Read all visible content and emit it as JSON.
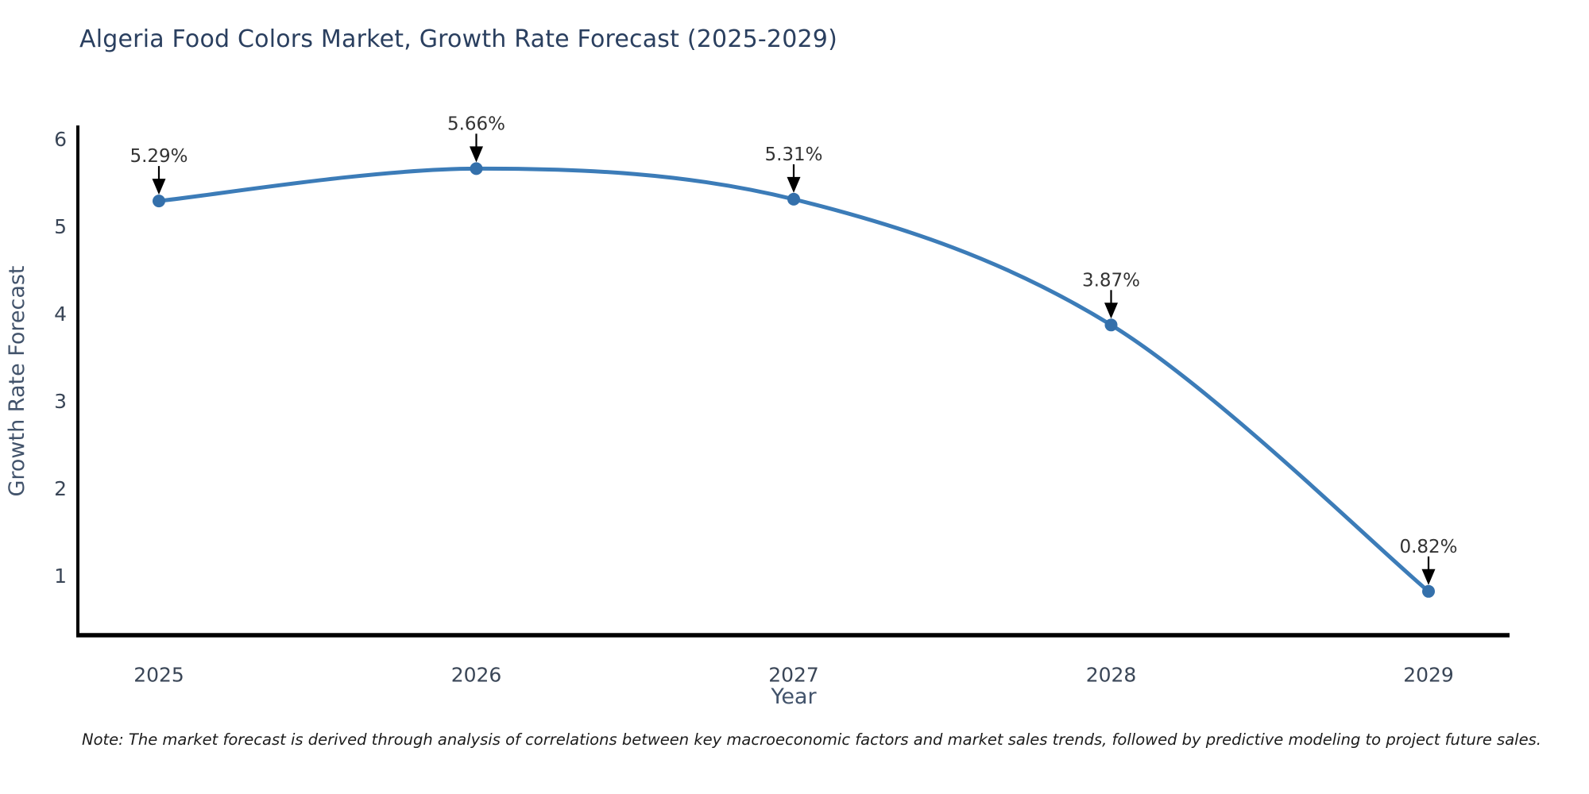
{
  "chart": {
    "title": "Algeria Food Colors Market, Growth Rate Forecast (2025-2029)",
    "note": "Note: The market forecast is derived through analysis of correlations between key macroeconomic factors and market sales trends, followed by predictive modeling to project future sales."
  },
  "chart_data": {
    "type": "line",
    "title": "Algeria Food Colors Market, Growth Rate Forecast (2025-2029)",
    "xlabel": "Year",
    "ylabel": "Growth Rate Forecast",
    "x": [
      2025,
      2026,
      2027,
      2028,
      2029
    ],
    "values": [
      5.29,
      5.66,
      5.31,
      3.87,
      0.82
    ],
    "point_labels": [
      "5.29%",
      "5.66%",
      "5.31%",
      "3.87%",
      "0.82%"
    ],
    "yticks": [
      1,
      2,
      3,
      4,
      5,
      6
    ],
    "ylim": [
      0.32,
      6.16
    ],
    "grid": false,
    "legend": "none",
    "marker_style": "circle",
    "smooth_line": true,
    "colors": {
      "line": "#3c7cb8",
      "marker": "#3470ab",
      "axis": "#000000",
      "tick_label": "#3a4657",
      "axis_title": "#42536b",
      "annotation_text": "#333333",
      "annotation_arrow": "#000000",
      "title": "#2a3f5f",
      "background": "#ffffff"
    }
  }
}
